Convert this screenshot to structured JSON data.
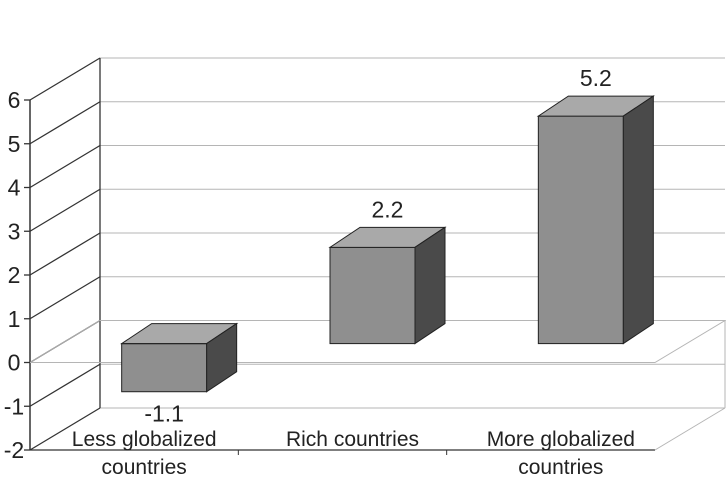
{
  "chart_data": {
    "type": "bar",
    "title": "",
    "xlabel": "",
    "ylabel": "",
    "ylim": [
      -2,
      6
    ],
    "yticks": [
      -2,
      -1,
      0,
      1,
      2,
      3,
      4,
      5,
      6
    ],
    "grid": true,
    "legend": "none",
    "categories": [
      [
        "Less globalized",
        "countries"
      ],
      [
        "Rich countries"
      ],
      [
        "More globalized",
        "countries"
      ]
    ],
    "values": [
      -1.1,
      2.2,
      5.2
    ],
    "data_labels": [
      "-1.1",
      "2.2",
      "5.2"
    ],
    "colors": {
      "bar_front": "#8f8f8f",
      "bar_top": "#a9a9a9",
      "bar_side": "#4a4a4a",
      "grid": "#b5b5b5",
      "axis": "#333333"
    }
  }
}
